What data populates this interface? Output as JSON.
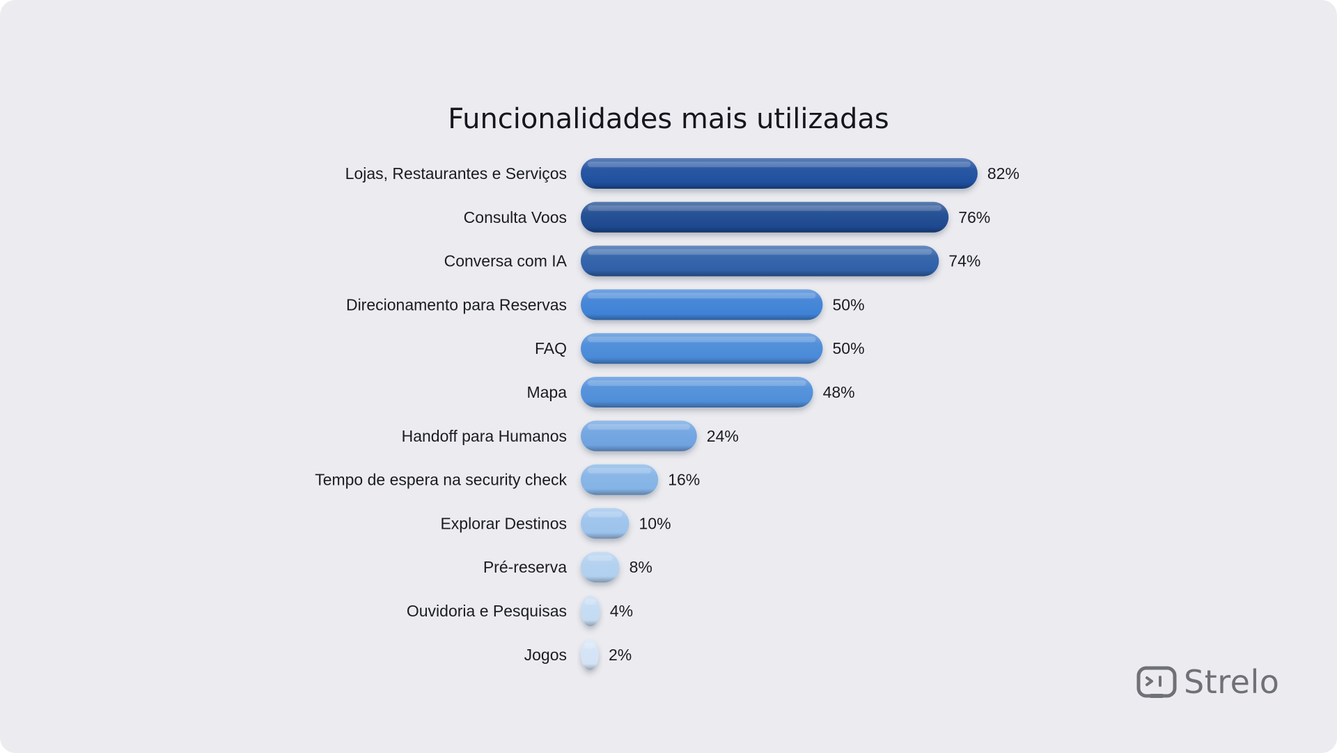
{
  "chart_data": {
    "type": "bar",
    "orientation": "horizontal",
    "title": "Funcionalidades mais utilizadas",
    "categories": [
      "Lojas, Restaurantes e Serviços",
      "Consulta Voos",
      "Conversa com IA",
      "Direcionamento para Reservas",
      "FAQ",
      "Mapa",
      "Handoff para Humanos",
      "Tempo de espera na security check",
      "Explorar Destinos",
      "Pré-reserva",
      "Ouvidoria e Pesquisas",
      "Jogos"
    ],
    "values": [
      82,
      76,
      74,
      50,
      50,
      48,
      24,
      16,
      10,
      8,
      4,
      2
    ],
    "value_labels": [
      "82%",
      "76%",
      "74%",
      "50%",
      "50%",
      "48%",
      "24%",
      "16%",
      "10%",
      "8%",
      "4%",
      "2%"
    ],
    "unit": "%",
    "xlim": [
      0,
      100
    ],
    "grid": false,
    "legend": "none",
    "colors": [
      "#1f4f9e",
      "#1e4a90",
      "#2f60a8",
      "#3f82d6",
      "#4a8ad8",
      "#4f8ed9",
      "#6fa3e0",
      "#84b3e6",
      "#9cc3ec",
      "#b1d0ef",
      "#c4dbf2",
      "#d3e3f5"
    ]
  },
  "brand": {
    "name": "Strelo",
    "icon": "strelo-logo-icon",
    "color": "#6f7177"
  },
  "background": "#ececf0"
}
